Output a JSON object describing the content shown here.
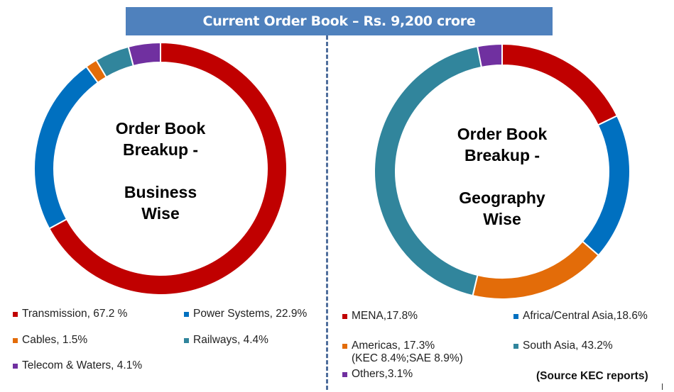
{
  "header": {
    "title": "Current Order Book – Rs. 9,200 crore"
  },
  "footer": {
    "source": "(Source KEC reports)"
  },
  "chart_data": [
    {
      "type": "pie",
      "variant": "donut",
      "title": "Order Book Breakup - Business Wise",
      "center_label": [
        "Order Book",
        "Breakup -",
        "",
        "Business",
        "Wise"
      ],
      "categories": [
        "Transmission",
        "Power Systems",
        "Cables",
        "Railways",
        "Telecom & Waters"
      ],
      "values": [
        67.2,
        22.9,
        1.5,
        4.4,
        4.1
      ],
      "colors": [
        "#c00000",
        "#0070c0",
        "#e36c09",
        "#31859c",
        "#7030a0"
      ],
      "legend": [
        "Transmission, 67.2 %",
        "Power Systems, 22.9%",
        "Cables, 1.5%",
        "Railways, 4.4%",
        "Telecom & Waters, 4.1%"
      ],
      "legend_position": "bottom"
    },
    {
      "type": "pie",
      "variant": "donut",
      "title": "Order Book Breakup - Geography Wise",
      "center_label": [
        "Order Book",
        "Breakup -",
        "",
        "Geography",
        "Wise"
      ],
      "categories": [
        "MENA",
        "Africa/Central Asia",
        "Americas",
        "South Asia",
        "Others"
      ],
      "values": [
        17.8,
        18.6,
        17.3,
        43.2,
        3.1
      ],
      "colors": [
        "#c00000",
        "#0070c0",
        "#e36c09",
        "#31859c",
        "#7030a0"
      ],
      "legend": [
        "MENA,17.8%",
        "Africa/Central Asia,18.6%",
        "Americas, 17.3%",
        "South Asia, 43.2%",
        "Others,3.1%"
      ],
      "legend_sub": {
        "Americas": "(KEC 8.4%;SAE 8.9%)"
      },
      "legend_position": "bottom"
    }
  ]
}
